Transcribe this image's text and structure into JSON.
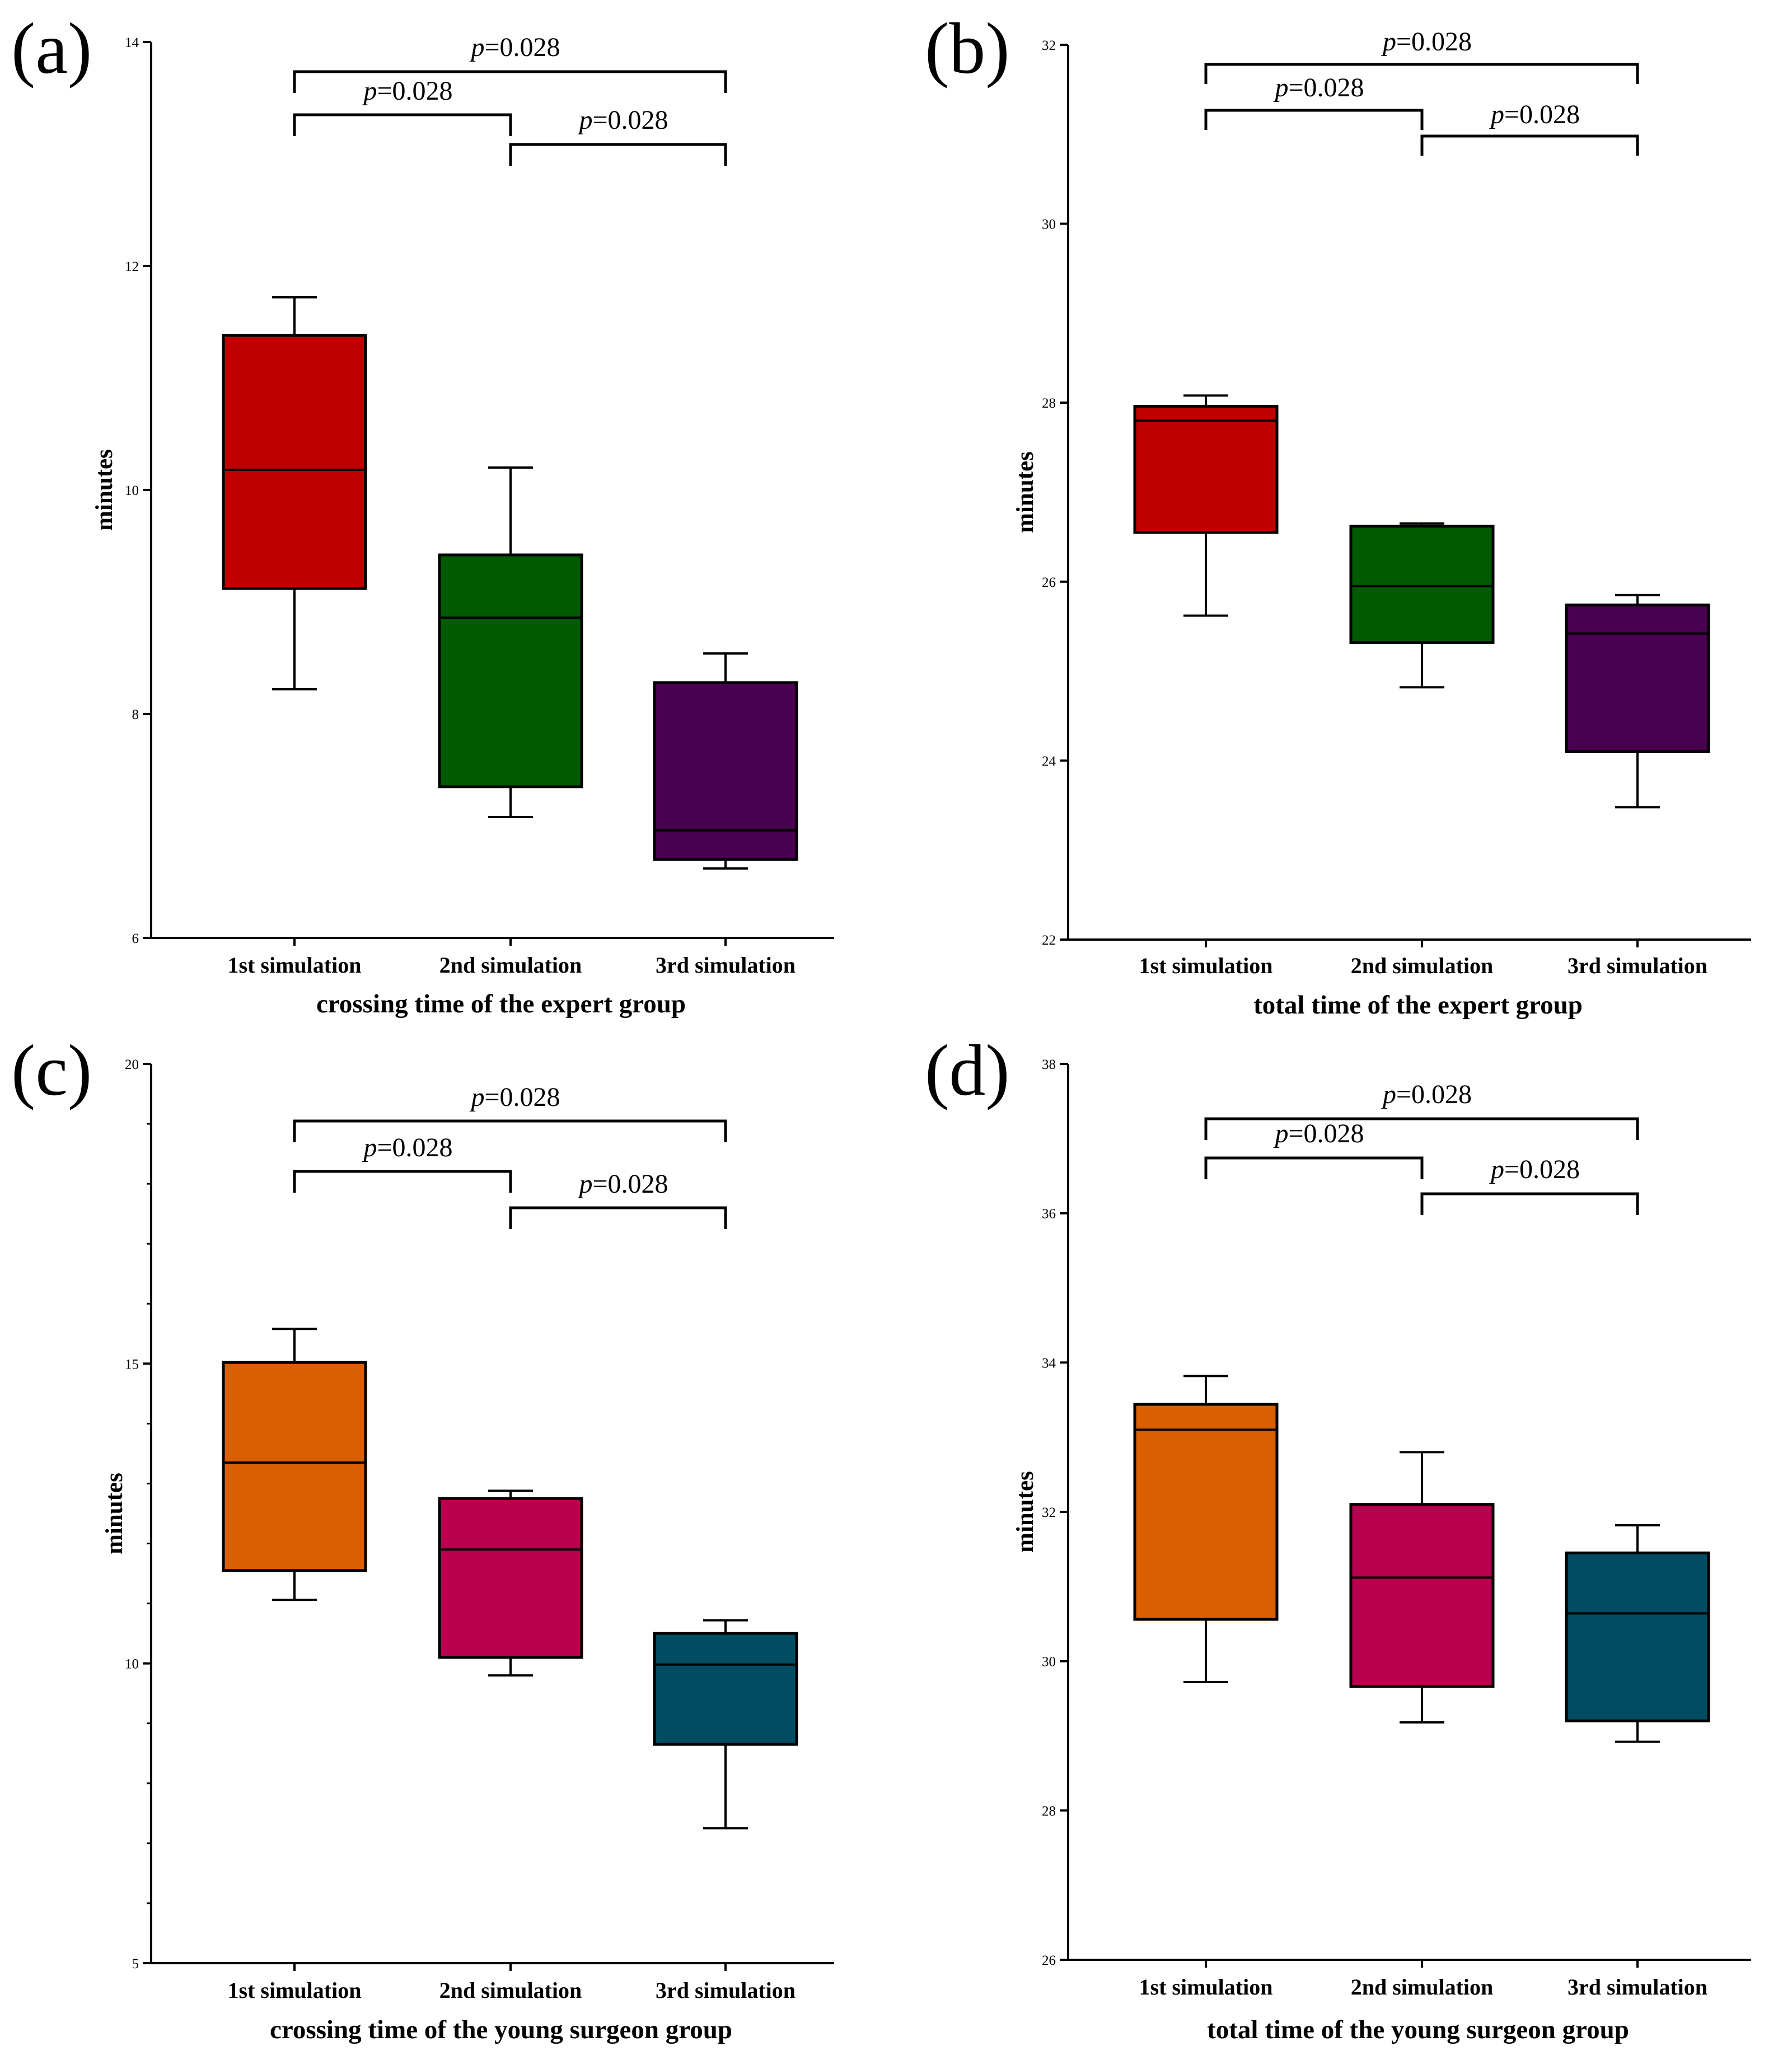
{
  "chart_data": [
    {
      "type": "box",
      "panel_label": "(a)",
      "title": "",
      "xlabel": "crossing time of the expert group",
      "ylabel": "minutes",
      "ylim": [
        6,
        14
      ],
      "yticks": [
        6,
        8,
        10,
        12,
        14
      ],
      "ytick_labels": [
        "6",
        "8",
        "10",
        "12",
        "14"
      ],
      "categories": [
        "1st simulation",
        "2nd simulation",
        "3rd simulation"
      ],
      "boxes": [
        {
          "name": "1st simulation",
          "whisker_low": 8.22,
          "q1": 9.12,
          "median": 10.18,
          "q3": 11.38,
          "whisker_high": 11.72,
          "color": "#c00000"
        },
        {
          "name": "2nd simulation",
          "whisker_low": 7.08,
          "q1": 7.35,
          "median": 8.86,
          "q3": 9.42,
          "whisker_high": 10.2,
          "color": "#005a00"
        },
        {
          "name": "3rd simulation",
          "whisker_low": 6.62,
          "q1": 6.7,
          "median": 6.96,
          "q3": 8.28,
          "whisker_high": 8.54,
          "color": "#4a0050"
        }
      ],
      "comparisons": [
        {
          "from": 0,
          "to": 2,
          "p_prefix": "p",
          "p_value": "=0.028"
        },
        {
          "from": 0,
          "to": 1,
          "p_prefix": "p",
          "p_value": "=0.028"
        },
        {
          "from": 1,
          "to": 2,
          "p_prefix": "p",
          "p_value": "=0.028"
        }
      ]
    },
    {
      "type": "box",
      "panel_label": "(b)",
      "title": "",
      "xlabel": "total time of the expert group",
      "ylabel": "minutes",
      "ylim": [
        22,
        32
      ],
      "yticks": [
        22,
        24,
        26,
        28,
        30,
        32
      ],
      "ytick_labels": [
        "22",
        "24",
        "26",
        "28",
        "30",
        "32"
      ],
      "categories": [
        "1st simulation",
        "2nd simulation",
        "3rd simulation"
      ],
      "boxes": [
        {
          "name": "1st simulation",
          "whisker_low": 25.62,
          "q1": 26.55,
          "median": 27.8,
          "q3": 27.96,
          "whisker_high": 28.08,
          "color": "#c00000"
        },
        {
          "name": "2nd simulation",
          "whisker_low": 24.82,
          "q1": 25.32,
          "median": 25.95,
          "q3": 26.62,
          "whisker_high": 26.65,
          "color": "#005a00"
        },
        {
          "name": "3rd simulation",
          "whisker_low": 23.48,
          "q1": 24.1,
          "median": 25.42,
          "q3": 25.74,
          "whisker_high": 25.85,
          "color": "#4a0050"
        }
      ],
      "comparisons": [
        {
          "from": 0,
          "to": 2,
          "p_prefix": "p",
          "p_value": "=0.028"
        },
        {
          "from": 0,
          "to": 1,
          "p_prefix": "p",
          "p_value": "=0.028"
        },
        {
          "from": 1,
          "to": 2,
          "p_prefix": "p",
          "p_value": "=0.028"
        }
      ]
    },
    {
      "type": "box",
      "panel_label": "(c)",
      "title": "",
      "xlabel": "crossing time of the young surgeon group",
      "ylabel": "minutes",
      "ylim": [
        5,
        20
      ],
      "yticks": [
        5,
        10,
        15,
        20
      ],
      "ytick_labels": [
        "5",
        "10",
        "15",
        "20"
      ],
      "minor_ytick_step": 1,
      "categories": [
        "1st simulation",
        "2nd simulation",
        "3rd simulation"
      ],
      "boxes": [
        {
          "name": "1st simulation",
          "whisker_low": 11.06,
          "q1": 11.55,
          "median": 13.35,
          "q3": 15.02,
          "whisker_high": 15.58,
          "color": "#d95f00"
        },
        {
          "name": "2nd simulation",
          "whisker_low": 9.8,
          "q1": 10.1,
          "median": 11.9,
          "q3": 12.75,
          "whisker_high": 12.88,
          "color": "#b8004e"
        },
        {
          "name": "3rd simulation",
          "whisker_low": 7.25,
          "q1": 8.65,
          "median": 9.98,
          "q3": 10.5,
          "whisker_high": 10.72,
          "color": "#004c62"
        }
      ],
      "comparisons": [
        {
          "from": 0,
          "to": 2,
          "p_prefix": "p",
          "p_value": "=0.028"
        },
        {
          "from": 0,
          "to": 1,
          "p_prefix": "p",
          "p_value": "=0.028"
        },
        {
          "from": 1,
          "to": 2,
          "p_prefix": "p",
          "p_value": "=0.028"
        }
      ]
    },
    {
      "type": "box",
      "panel_label": "(d)",
      "title": "",
      "xlabel": "total time of the young surgeon group",
      "ylabel": "minutes",
      "ylim": [
        26,
        38
      ],
      "yticks": [
        26,
        28,
        30,
        32,
        34,
        36,
        38
      ],
      "ytick_labels": [
        "26",
        "28",
        "30",
        "32",
        "34",
        "36",
        "38"
      ],
      "categories": [
        "1st simulation",
        "2nd simulation",
        "3rd simulation"
      ],
      "boxes": [
        {
          "name": "1st simulation",
          "whisker_low": 29.72,
          "q1": 30.56,
          "median": 33.1,
          "q3": 33.44,
          "whisker_high": 33.82,
          "color": "#d95f00"
        },
        {
          "name": "2nd simulation",
          "whisker_low": 29.18,
          "q1": 29.66,
          "median": 31.12,
          "q3": 32.1,
          "whisker_high": 32.8,
          "color": "#b8004e"
        },
        {
          "name": "3rd simulation",
          "whisker_low": 28.92,
          "q1": 29.2,
          "median": 30.64,
          "q3": 31.45,
          "whisker_high": 31.82,
          "color": "#004c62"
        }
      ],
      "comparisons": [
        {
          "from": 0,
          "to": 2,
          "p_prefix": "p",
          "p_value": "=0.028"
        },
        {
          "from": 0,
          "to": 1,
          "p_prefix": "p",
          "p_value": "=0.028"
        },
        {
          "from": 1,
          "to": 2,
          "p_prefix": "p",
          "p_value": "=0.028"
        }
      ]
    }
  ]
}
